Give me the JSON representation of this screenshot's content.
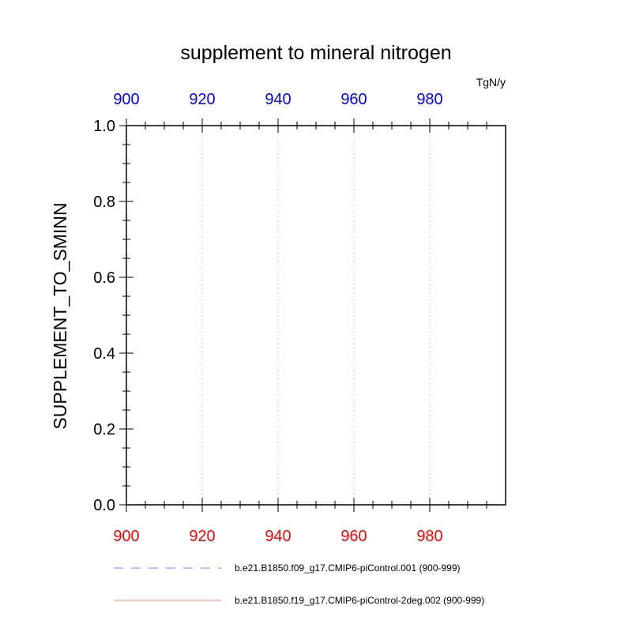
{
  "chart_data": {
    "type": "line",
    "title": "supplement to mineral nitrogen",
    "units": "TgN/y",
    "ylabel": "SUPPLEMENT_TO_SMINN",
    "xlabel": "",
    "xlim": [
      900,
      999
    ],
    "ylim": [
      0.0,
      1.0
    ],
    "x_ticks_bottom": [
      900,
      920,
      940,
      960,
      980
    ],
    "x_ticks_top": [
      900,
      920,
      940,
      960,
      980
    ],
    "y_ticks": [
      0.0,
      0.2,
      0.4,
      0.6,
      0.8,
      1.0
    ],
    "y_tick_labels": [
      "0.0",
      "0.2",
      "0.4",
      "0.6",
      "0.8",
      "1.0"
    ],
    "bottom_axis_color": "#ff0000",
    "top_axis_color": "#0000ff",
    "vertical_gridlines": true,
    "legend_position": "bottom",
    "series": [
      {
        "name": "b.e21.B1850.f09_g17.CMIP6-piControl.001 (900-999)",
        "color": "#8080ff",
        "line_style": "dashed",
        "x": [
          900,
          999
        ],
        "values": [
          0.0,
          0.0
        ]
      },
      {
        "name": "b.e21.B1850.f19_g17.CMIP6-piControl-2deg.002 (900-999)",
        "color": "#ff8080",
        "line_style": "solid",
        "x": [
          900,
          999
        ],
        "values": [
          0.0,
          0.0
        ]
      }
    ]
  }
}
